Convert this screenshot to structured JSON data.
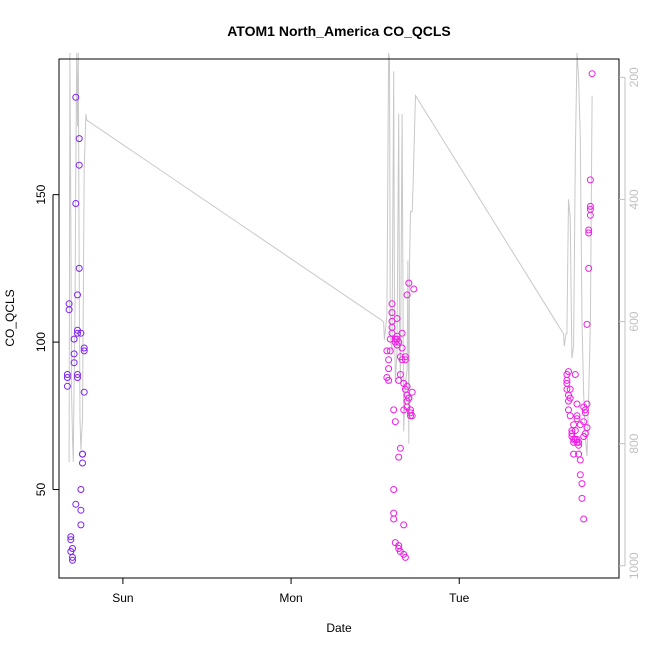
{
  "chart_data": {
    "type": "scatter",
    "title": "ATOM1 North_America CO_QCLS",
    "xlabel": "Date",
    "ylabel": "CO_QCLS",
    "x_tick_labels": [
      "Sun",
      "Mon",
      "Tue"
    ],
    "x_ticks_days": [
      1,
      2,
      3
    ],
    "x_range_days": [
      0.62,
      3.95
    ],
    "y_ticks": [
      50,
      100,
      150
    ],
    "y_range": [
      20,
      196
    ],
    "y2_ticks": [
      200,
      400,
      600,
      800,
      1000
    ],
    "y2_range": [
      1020,
      170
    ],
    "grid": false,
    "colors": {
      "line": "#c8c8c8",
      "points_start": "#7a22f2",
      "points_end": "#f01ee6",
      "axis": "#000000",
      "axis_right": "#c0c0c0"
    },
    "points": [
      [
        0.67,
        85
      ],
      [
        0.67,
        89
      ],
      [
        0.67,
        88
      ],
      [
        0.68,
        111
      ],
      [
        0.68,
        113
      ],
      [
        0.69,
        33
      ],
      [
        0.69,
        34
      ],
      [
        0.69,
        29
      ],
      [
        0.7,
        27
      ],
      [
        0.7,
        26
      ],
      [
        0.7,
        30
      ],
      [
        0.71,
        96
      ],
      [
        0.71,
        93
      ],
      [
        0.71,
        101
      ],
      [
        0.72,
        147
      ],
      [
        0.72,
        183
      ],
      [
        0.72,
        45
      ],
      [
        0.73,
        116
      ],
      [
        0.73,
        89
      ],
      [
        0.73,
        88
      ],
      [
        0.73,
        104
      ],
      [
        0.73,
        103
      ],
      [
        0.74,
        169
      ],
      [
        0.74,
        160
      ],
      [
        0.74,
        125
      ],
      [
        0.75,
        103
      ],
      [
        0.75,
        50
      ],
      [
        0.75,
        38
      ],
      [
        0.75,
        43
      ],
      [
        0.76,
        62
      ],
      [
        0.76,
        62
      ],
      [
        0.76,
        59
      ],
      [
        0.77,
        83
      ],
      [
        0.77,
        97
      ],
      [
        0.77,
        98
      ],
      [
        2.57,
        88
      ],
      [
        2.57,
        97
      ],
      [
        2.58,
        94
      ],
      [
        2.58,
        91
      ],
      [
        2.58,
        87
      ],
      [
        2.59,
        97
      ],
      [
        2.59,
        101
      ],
      [
        2.6,
        105
      ],
      [
        2.6,
        103
      ],
      [
        2.6,
        107
      ],
      [
        2.6,
        113
      ],
      [
        2.6,
        110
      ],
      [
        2.61,
        77
      ],
      [
        2.61,
        50
      ],
      [
        2.61,
        42
      ],
      [
        2.61,
        40
      ],
      [
        2.62,
        32
      ],
      [
        2.62,
        73
      ],
      [
        2.62,
        100
      ],
      [
        2.62,
        101
      ],
      [
        2.63,
        101
      ],
      [
        2.63,
        102
      ],
      [
        2.63,
        108
      ],
      [
        2.63,
        99
      ],
      [
        2.64,
        100
      ],
      [
        2.64,
        87
      ],
      [
        2.64,
        61
      ],
      [
        2.64,
        30
      ],
      [
        2.64,
        31
      ],
      [
        2.65,
        29
      ],
      [
        2.65,
        64
      ],
      [
        2.65,
        95
      ],
      [
        2.65,
        89
      ],
      [
        2.66,
        94
      ],
      [
        2.66,
        98
      ],
      [
        2.66,
        103
      ],
      [
        2.67,
        38
      ],
      [
        2.67,
        77
      ],
      [
        2.67,
        28
      ],
      [
        2.67,
        86
      ],
      [
        2.68,
        94
      ],
      [
        2.68,
        84
      ],
      [
        2.68,
        95
      ],
      [
        2.68,
        27
      ],
      [
        2.69,
        80
      ],
      [
        2.69,
        82
      ],
      [
        2.69,
        85
      ],
      [
        2.69,
        78
      ],
      [
        2.69,
        116
      ],
      [
        2.7,
        81
      ],
      [
        2.7,
        81
      ],
      [
        2.7,
        120
      ],
      [
        2.71,
        77
      ],
      [
        2.71,
        75
      ],
      [
        2.71,
        76
      ],
      [
        2.72,
        83
      ],
      [
        2.72,
        75
      ],
      [
        2.73,
        118
      ],
      [
        3.64,
        87
      ],
      [
        3.64,
        86
      ],
      [
        3.64,
        84
      ],
      [
        3.64,
        89
      ],
      [
        3.65,
        90
      ],
      [
        3.65,
        82
      ],
      [
        3.65,
        77
      ],
      [
        3.65,
        80
      ],
      [
        3.66,
        81
      ],
      [
        3.66,
        84
      ],
      [
        3.66,
        75
      ],
      [
        3.67,
        69
      ],
      [
        3.67,
        70
      ],
      [
        3.67,
        68
      ],
      [
        3.68,
        62
      ],
      [
        3.68,
        72
      ],
      [
        3.68,
        67
      ],
      [
        3.68,
        66
      ],
      [
        3.69,
        89
      ],
      [
        3.69,
        70
      ],
      [
        3.69,
        67
      ],
      [
        3.7,
        79
      ],
      [
        3.7,
        75
      ],
      [
        3.7,
        74
      ],
      [
        3.7,
        66
      ],
      [
        3.7,
        67
      ],
      [
        3.71,
        65
      ],
      [
        3.71,
        62
      ],
      [
        3.71,
        66
      ],
      [
        3.72,
        60
      ],
      [
        3.72,
        55
      ],
      [
        3.72,
        72
      ],
      [
        3.73,
        52
      ],
      [
        3.73,
        47
      ],
      [
        3.74,
        40
      ],
      [
        3.74,
        78
      ],
      [
        3.74,
        73
      ],
      [
        3.74,
        68
      ],
      [
        3.75,
        77
      ],
      [
        3.75,
        69
      ],
      [
        3.75,
        76
      ],
      [
        3.76,
        79
      ],
      [
        3.76,
        71
      ],
      [
        3.76,
        106
      ],
      [
        3.77,
        125
      ],
      [
        3.77,
        138
      ],
      [
        3.77,
        137
      ],
      [
        3.78,
        146
      ],
      [
        3.78,
        145
      ],
      [
        3.78,
        143
      ],
      [
        3.78,
        155
      ],
      [
        3.79,
        191
      ]
    ],
    "line": [
      [
        0.68,
        830
      ],
      [
        0.685,
        160
      ],
      [
        0.69,
        420
      ],
      [
        0.695,
        720
      ],
      [
        0.7,
        790
      ],
      [
        0.705,
        830
      ],
      [
        0.71,
        700
      ],
      [
        0.715,
        580
      ],
      [
        0.72,
        350
      ],
      [
        0.725,
        160
      ],
      [
        0.73,
        280
      ],
      [
        0.735,
        160
      ],
      [
        0.74,
        520
      ],
      [
        0.745,
        760
      ],
      [
        0.75,
        810
      ],
      [
        0.76,
        760
      ],
      [
        0.77,
        350
      ],
      [
        0.78,
        260
      ],
      [
        0.785,
        270
      ],
      [
        2.55,
        600
      ],
      [
        2.555,
        630
      ],
      [
        2.57,
        590
      ],
      [
        2.58,
        160
      ],
      [
        2.585,
        170
      ],
      [
        2.59,
        620
      ],
      [
        2.6,
        650
      ],
      [
        2.61,
        190
      ],
      [
        2.615,
        600
      ],
      [
        2.62,
        700
      ],
      [
        2.63,
        650
      ],
      [
        2.64,
        260
      ],
      [
        2.645,
        600
      ],
      [
        2.65,
        700
      ],
      [
        2.66,
        260
      ],
      [
        2.67,
        780
      ],
      [
        2.68,
        700
      ],
      [
        2.69,
        680
      ],
      [
        2.695,
        500
      ],
      [
        2.7,
        800
      ],
      [
        2.705,
        500
      ],
      [
        2.71,
        420
      ],
      [
        2.72,
        420
      ],
      [
        2.725,
        380
      ],
      [
        2.73,
        330
      ],
      [
        2.74,
        230
      ],
      [
        3.62,
        620
      ],
      [
        3.625,
        640
      ],
      [
        3.635,
        620
      ],
      [
        3.64,
        620
      ],
      [
        3.65,
        400
      ],
      [
        3.66,
        430
      ],
      [
        3.67,
        660
      ],
      [
        3.68,
        640
      ],
      [
        3.69,
        330
      ],
      [
        3.7,
        160
      ],
      [
        3.71,
        200
      ],
      [
        3.72,
        300
      ],
      [
        3.73,
        600
      ],
      [
        3.74,
        720
      ],
      [
        3.75,
        790
      ],
      [
        3.76,
        820
      ],
      [
        3.77,
        720
      ],
      [
        3.78,
        600
      ],
      [
        3.79,
        230
      ]
    ]
  }
}
